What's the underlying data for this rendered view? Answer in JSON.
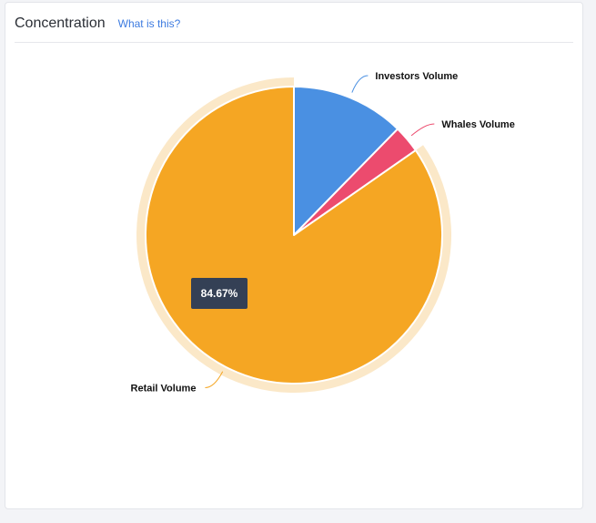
{
  "card": {
    "title": "Concentration",
    "help_link": "What is this?"
  },
  "colors": {
    "accent_link": "#3d7be0",
    "tooltip_bg": "#344055",
    "halo": "#fbe8c8"
  },
  "chart_data": {
    "type": "pie",
    "title": "",
    "slices": [
      {
        "label": "Investors Volume",
        "value": 12.33,
        "color": "#4a90e2"
      },
      {
        "label": "Whales Volume",
        "value": 3.0,
        "color": "#ec4b6e"
      },
      {
        "label": "Retail Volume",
        "value": 84.67,
        "color": "#f5a623"
      }
    ],
    "highlighted": "Retail Volume",
    "tooltip": "84.67%"
  }
}
